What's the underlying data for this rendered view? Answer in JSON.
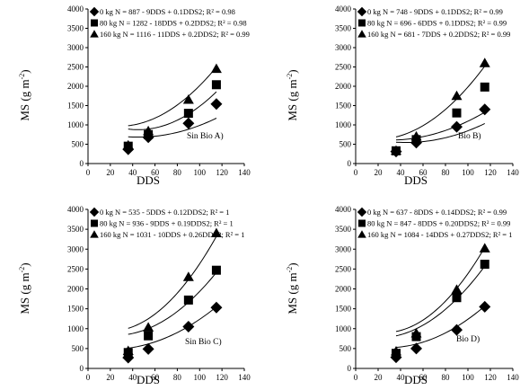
{
  "chart_data": [
    {
      "type": "scatter",
      "panel_label": "Sin Bio  A)",
      "xlabel": "DDS",
      "ylabel": "MS (g m-2)",
      "xlim": [
        0,
        140
      ],
      "ylim": [
        0,
        4000
      ],
      "xticks": [
        0,
        20,
        40,
        60,
        80,
        100,
        120,
        140
      ],
      "yticks": [
        0,
        500,
        1000,
        1500,
        2000,
        2500,
        3000,
        3500,
        4000
      ],
      "x": [
        36,
        54,
        90,
        115
      ],
      "series": [
        {
          "name": "0 kg N",
          "equation": "= 887 - 9DDS + 0.1DDS2; R² = 0.98",
          "marker": "diamond",
          "values": [
            370,
            680,
            1040,
            1540
          ],
          "fit": [
            887,
            -9,
            0.1
          ]
        },
        {
          "name": "80 kg N",
          "equation": "= 1282 - 18DDS + 0.2DDS2; R² = 0.98",
          "marker": "square",
          "values": [
            450,
            750,
            1300,
            2040
          ],
          "fit": [
            1282,
            -18,
            0.2
          ]
        },
        {
          "name": "160 kg N",
          "equation": "= 1116 - 11DDS + 0.2DDS2; R² = 0.99",
          "marker": "triangle",
          "values": [
            470,
            840,
            1650,
            2450
          ],
          "fit": [
            1116,
            -11,
            0.2
          ]
        }
      ]
    },
    {
      "type": "scatter",
      "panel_label": "Bio B)",
      "xlabel": "DDS",
      "ylabel": "MS (g m-2)",
      "xlim": [
        0,
        140
      ],
      "ylim": [
        0,
        4000
      ],
      "xticks": [
        0,
        20,
        40,
        60,
        80,
        100,
        120,
        140
      ],
      "yticks": [
        0,
        500,
        1000,
        1500,
        2000,
        2500,
        3000,
        3500,
        4000
      ],
      "x": [
        36,
        54,
        90,
        115
      ],
      "series": [
        {
          "name": "0 kg N",
          "equation": "= 748 - 9DDS + 0.1DDS2; R² = 0.99",
          "marker": "diamond",
          "values": [
            310,
            540,
            950,
            1400
          ],
          "fit": [
            748,
            -9,
            0.1
          ]
        },
        {
          "name": "80 kg N",
          "equation": "= 696 - 6DDS + 0.1DDS2; R² = 0.99",
          "marker": "square",
          "values": [
            330,
            620,
            1310,
            1980
          ],
          "fit": [
            696,
            -6,
            0.1
          ]
        },
        {
          "name": "160 kg N",
          "equation": "= 681 - 7DDS + 0.2DDS2; R² = 0.99",
          "marker": "triangle",
          "values": [
            330,
            700,
            1750,
            2600
          ],
          "fit": [
            681,
            -7,
            0.2
          ]
        }
      ]
    },
    {
      "type": "scatter",
      "panel_label": "Sin Bio C)",
      "xlabel": "DDS",
      "ylabel": "MS (g m-2)",
      "xlim": [
        0,
        140
      ],
      "ylim": [
        0,
        4000
      ],
      "xticks": [
        0,
        20,
        40,
        60,
        80,
        100,
        120,
        140
      ],
      "yticks": [
        0,
        500,
        1000,
        1500,
        2000,
        2500,
        3000,
        3500,
        4000
      ],
      "x": [
        36,
        54,
        90,
        115
      ],
      "series": [
        {
          "name": "0 kg N",
          "equation": "= 535 - 5DDS + 0.12DDS2; R² = 1",
          "marker": "diamond",
          "values": [
            270,
            490,
            1050,
            1530
          ],
          "fit": [
            535,
            -5,
            0.12
          ]
        },
        {
          "name": "80 kg N",
          "equation": "= 936 - 9DDS + 0.19DDS2; R² = 1",
          "marker": "square",
          "values": [
            400,
            820,
            1720,
            2470
          ],
          "fit": [
            936,
            -9,
            0.19
          ]
        },
        {
          "name": "160 kg N",
          "equation": "= 1031 - 10DDS + 0.26DDS2; R² = 1",
          "marker": "triangle",
          "values": [
            440,
            1030,
            2300,
            3400
          ],
          "fit": [
            1031,
            -10,
            0.26
          ]
        }
      ]
    },
    {
      "type": "scatter",
      "panel_label": "Bio D)",
      "xlabel": "DDS",
      "ylabel": "MS (g m-2)",
      "xlim": [
        0,
        140
      ],
      "ylim": [
        0,
        4000
      ],
      "xticks": [
        0,
        20,
        40,
        60,
        80,
        100,
        120,
        140
      ],
      "yticks": [
        0,
        500,
        1000,
        1500,
        2000,
        2500,
        3000,
        3500,
        4000
      ],
      "x": [
        36,
        54,
        90,
        115
      ],
      "series": [
        {
          "name": "0 kg N",
          "equation": "= 637 - 8DDS + 0.14DDS2; R² = 0.99",
          "marker": "diamond",
          "values": [
            280,
            500,
            970,
            1550
          ],
          "fit": [
            637,
            -8,
            0.14
          ]
        },
        {
          "name": "80 kg N",
          "equation": "= 847 - 8DDS + 0.20DDS2; R² = 0.99",
          "marker": "square",
          "values": [
            380,
            800,
            1780,
            2620
          ],
          "fit": [
            847,
            -8,
            0.2
          ]
        },
        {
          "name": "160 kg N",
          "equation": "= 1084 - 14DDS + 0.27DDS2; R² = 1",
          "marker": "triangle",
          "values": [
            430,
            880,
            1980,
            3020
          ],
          "fit": [
            1084,
            -14,
            0.27
          ]
        }
      ]
    }
  ]
}
